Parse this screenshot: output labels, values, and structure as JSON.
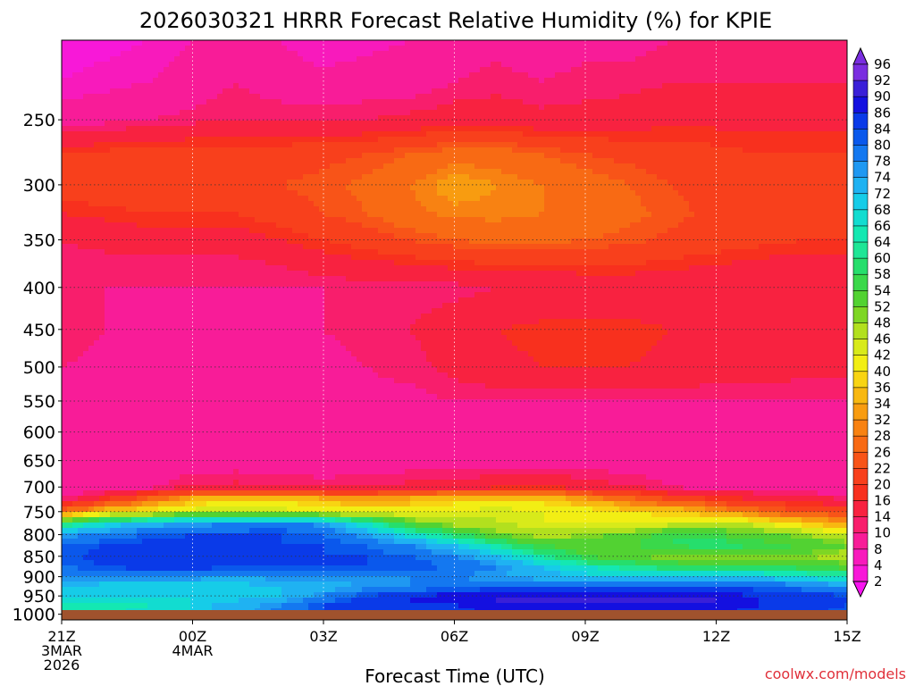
{
  "chart_data": {
    "type": "heatmap",
    "title": "2026030321 HRRR Forecast Relative Humidity (%) for KPIE",
    "xlabel": "Forecast Time (UTC)",
    "ylabel": "",
    "x_ticks": [
      {
        "hour": 0,
        "lines": [
          "21Z",
          "3MAR",
          "2026"
        ]
      },
      {
        "hour": 3,
        "lines": [
          "00Z",
          "4MAR"
        ]
      },
      {
        "hour": 6,
        "lines": [
          "03Z"
        ]
      },
      {
        "hour": 9,
        "lines": [
          "06Z"
        ]
      },
      {
        "hour": 12,
        "lines": [
          "09Z"
        ]
      },
      {
        "hour": 15,
        "lines": [
          "12Z"
        ]
      },
      {
        "hour": 18,
        "lines": [
          "15Z"
        ]
      }
    ],
    "xlim_hours": [
      0,
      18
    ],
    "y_ticks": [
      250,
      300,
      350,
      400,
      450,
      500,
      550,
      600,
      650,
      700,
      750,
      800,
      850,
      900,
      950,
      1000
    ],
    "ylim_hpa": [
      200,
      1016
    ],
    "y_scale": "log",
    "colorbar_labels": [
      96,
      92,
      90,
      86,
      84,
      80,
      78,
      74,
      72,
      68,
      66,
      64,
      60,
      58,
      54,
      52,
      48,
      46,
      42,
      40,
      36,
      34,
      32,
      28,
      26,
      22,
      20,
      16,
      14,
      10,
      8,
      4,
      2
    ],
    "colorbar_colors": [
      "#7a2ee0",
      "#3a1fd8",
      "#1410e0",
      "#0a3ae8",
      "#0a58ec",
      "#1478f0",
      "#1f98f2",
      "#1fb2f2",
      "#16cce8",
      "#12dcd0",
      "#14e8b2",
      "#1ee696",
      "#26de6c",
      "#3ad84a",
      "#52d232",
      "#7ed624",
      "#b2e01e",
      "#d8ea1a",
      "#f2ee14",
      "#f8d412",
      "#f8b810",
      "#f89c10",
      "#f88212",
      "#f86a14",
      "#f85418",
      "#f8401c",
      "#f8301e",
      "#f82240",
      "#f81e6c",
      "#f81c98",
      "#f81abc",
      "#f818d8",
      "#f814f0"
    ],
    "grid": true,
    "rh_field": {
      "hours": [
        0,
        1,
        2,
        3,
        4,
        5,
        6,
        7,
        8,
        9,
        10,
        11,
        12,
        13,
        14,
        15,
        16,
        17,
        18
      ],
      "levels_hpa": [
        200,
        225,
        250,
        275,
        300,
        325,
        350,
        375,
        400,
        450,
        500,
        550,
        600,
        650,
        700,
        725,
        750,
        775,
        800,
        825,
        850,
        875,
        900,
        925,
        950,
        975,
        1000,
        1016
      ],
      "values": [
        [
          7,
          7,
          8,
          10,
          13,
          10,
          8,
          9,
          10,
          12,
          13,
          12,
          13,
          13,
          14,
          14,
          14,
          14,
          15
        ],
        [
          8,
          9,
          10,
          12,
          14,
          12,
          11,
          12,
          12,
          14,
          15,
          14,
          15,
          15,
          16,
          16,
          16,
          16,
          16
        ],
        [
          12,
          13,
          14,
          15,
          16,
          16,
          16,
          16,
          17,
          18,
          18,
          17,
          17,
          18,
          19,
          19,
          19,
          19,
          19
        ],
        [
          22,
          23,
          24,
          24,
          24,
          24,
          25,
          26,
          28,
          30,
          30,
          28,
          26,
          25,
          24,
          23,
          22,
          22,
          22
        ],
        [
          24,
          25,
          25,
          26,
          26,
          26,
          27,
          29,
          32,
          36,
          34,
          32,
          30,
          28,
          26,
          24,
          23,
          23,
          23
        ],
        [
          20,
          21,
          22,
          22,
          22,
          24,
          26,
          28,
          31,
          33,
          33,
          32,
          31,
          29,
          27,
          25,
          24,
          23,
          23
        ],
        [
          16,
          17,
          18,
          18,
          18,
          20,
          22,
          24,
          26,
          28,
          29,
          29,
          28,
          27,
          25,
          24,
          23,
          22,
          22
        ],
        [
          15,
          15,
          15,
          15,
          15,
          16,
          18,
          19,
          20,
          21,
          22,
          22,
          22,
          22,
          21,
          20,
          19,
          18,
          18
        ],
        [
          14,
          14,
          14,
          14,
          14,
          14,
          14,
          15,
          15,
          15,
          16,
          16,
          17,
          17,
          17,
          16,
          16,
          16,
          16
        ],
        [
          16,
          14,
          13,
          13,
          13,
          13,
          14,
          15,
          16,
          18,
          20,
          21,
          21,
          21,
          20,
          19,
          19,
          18,
          18
        ],
        [
          14,
          13,
          13,
          13,
          13,
          13,
          13,
          14,
          15,
          17,
          19,
          20,
          20,
          20,
          19,
          18,
          18,
          17,
          17
        ],
        [
          13,
          13,
          13,
          13,
          13,
          13,
          13,
          13,
          13,
          14,
          14,
          14,
          14,
          14,
          14,
          14,
          14,
          14,
          14
        ],
        [
          13,
          13,
          13,
          13,
          13,
          12,
          12,
          12,
          12,
          12,
          12,
          12,
          12,
          12,
          12,
          12,
          12,
          12,
          12
        ],
        [
          12,
          12,
          12,
          12,
          12,
          12,
          12,
          12,
          12,
          12,
          12,
          12,
          12,
          12,
          12,
          12,
          12,
          12,
          12
        ],
        [
          10,
          11,
          13,
          16,
          17,
          16,
          15,
          16,
          17,
          18,
          19,
          20,
          18,
          16,
          14,
          12,
          12,
          11,
          11
        ],
        [
          14,
          22,
          30,
          38,
          40,
          40,
          38,
          36,
          38,
          40,
          42,
          40,
          36,
          30,
          26,
          22,
          20,
          18,
          16
        ],
        [
          30,
          40,
          44,
          48,
          50,
          48,
          46,
          44,
          44,
          46,
          48,
          46,
          44,
          42,
          40,
          36,
          30,
          26,
          24
        ],
        [
          62,
          70,
          76,
          78,
          80,
          82,
          78,
          68,
          56,
          50,
          48,
          46,
          46,
          44,
          46,
          48,
          46,
          40,
          36
        ],
        [
          78,
          82,
          84,
          86,
          86,
          86,
          84,
          78,
          70,
          62,
          54,
          50,
          52,
          56,
          60,
          58,
          56,
          52,
          48
        ],
        [
          84,
          86,
          88,
          88,
          86,
          86,
          86,
          84,
          80,
          74,
          66,
          58,
          56,
          58,
          60,
          62,
          60,
          58,
          54
        ],
        [
          84,
          88,
          90,
          90,
          88,
          88,
          86,
          86,
          84,
          80,
          74,
          66,
          58,
          54,
          52,
          52,
          52,
          52,
          50
        ],
        [
          84,
          86,
          88,
          88,
          86,
          86,
          86,
          86,
          86,
          84,
          80,
          74,
          68,
          64,
          62,
          60,
          60,
          58,
          56
        ],
        [
          80,
          80,
          80,
          80,
          78,
          80,
          80,
          80,
          80,
          80,
          78,
          76,
          74,
          72,
          72,
          72,
          72,
          70,
          68
        ],
        [
          74,
          72,
          72,
          72,
          72,
          74,
          76,
          78,
          80,
          82,
          84,
          84,
          84,
          84,
          84,
          84,
          84,
          82,
          80
        ],
        [
          74,
          72,
          72,
          72,
          72,
          74,
          80,
          86,
          90,
          92,
          92,
          92,
          92,
          92,
          92,
          92,
          90,
          88,
          86
        ],
        [
          66,
          66,
          68,
          72,
          76,
          80,
          86,
          90,
          90,
          90,
          92,
          92,
          92,
          92,
          92,
          92,
          90,
          88,
          86
        ],
        [
          66,
          68,
          70,
          72,
          76,
          82,
          86,
          88,
          88,
          88,
          90,
          90,
          90,
          90,
          90,
          90,
          88,
          86,
          84
        ],
        [
          64,
          66,
          68,
          72,
          76,
          80,
          84,
          86,
          86,
          86,
          88,
          88,
          88,
          88,
          88,
          88,
          86,
          84,
          82
        ]
      ]
    },
    "ground_color": "#a0522d"
  },
  "credit": "coolwx.com/models"
}
